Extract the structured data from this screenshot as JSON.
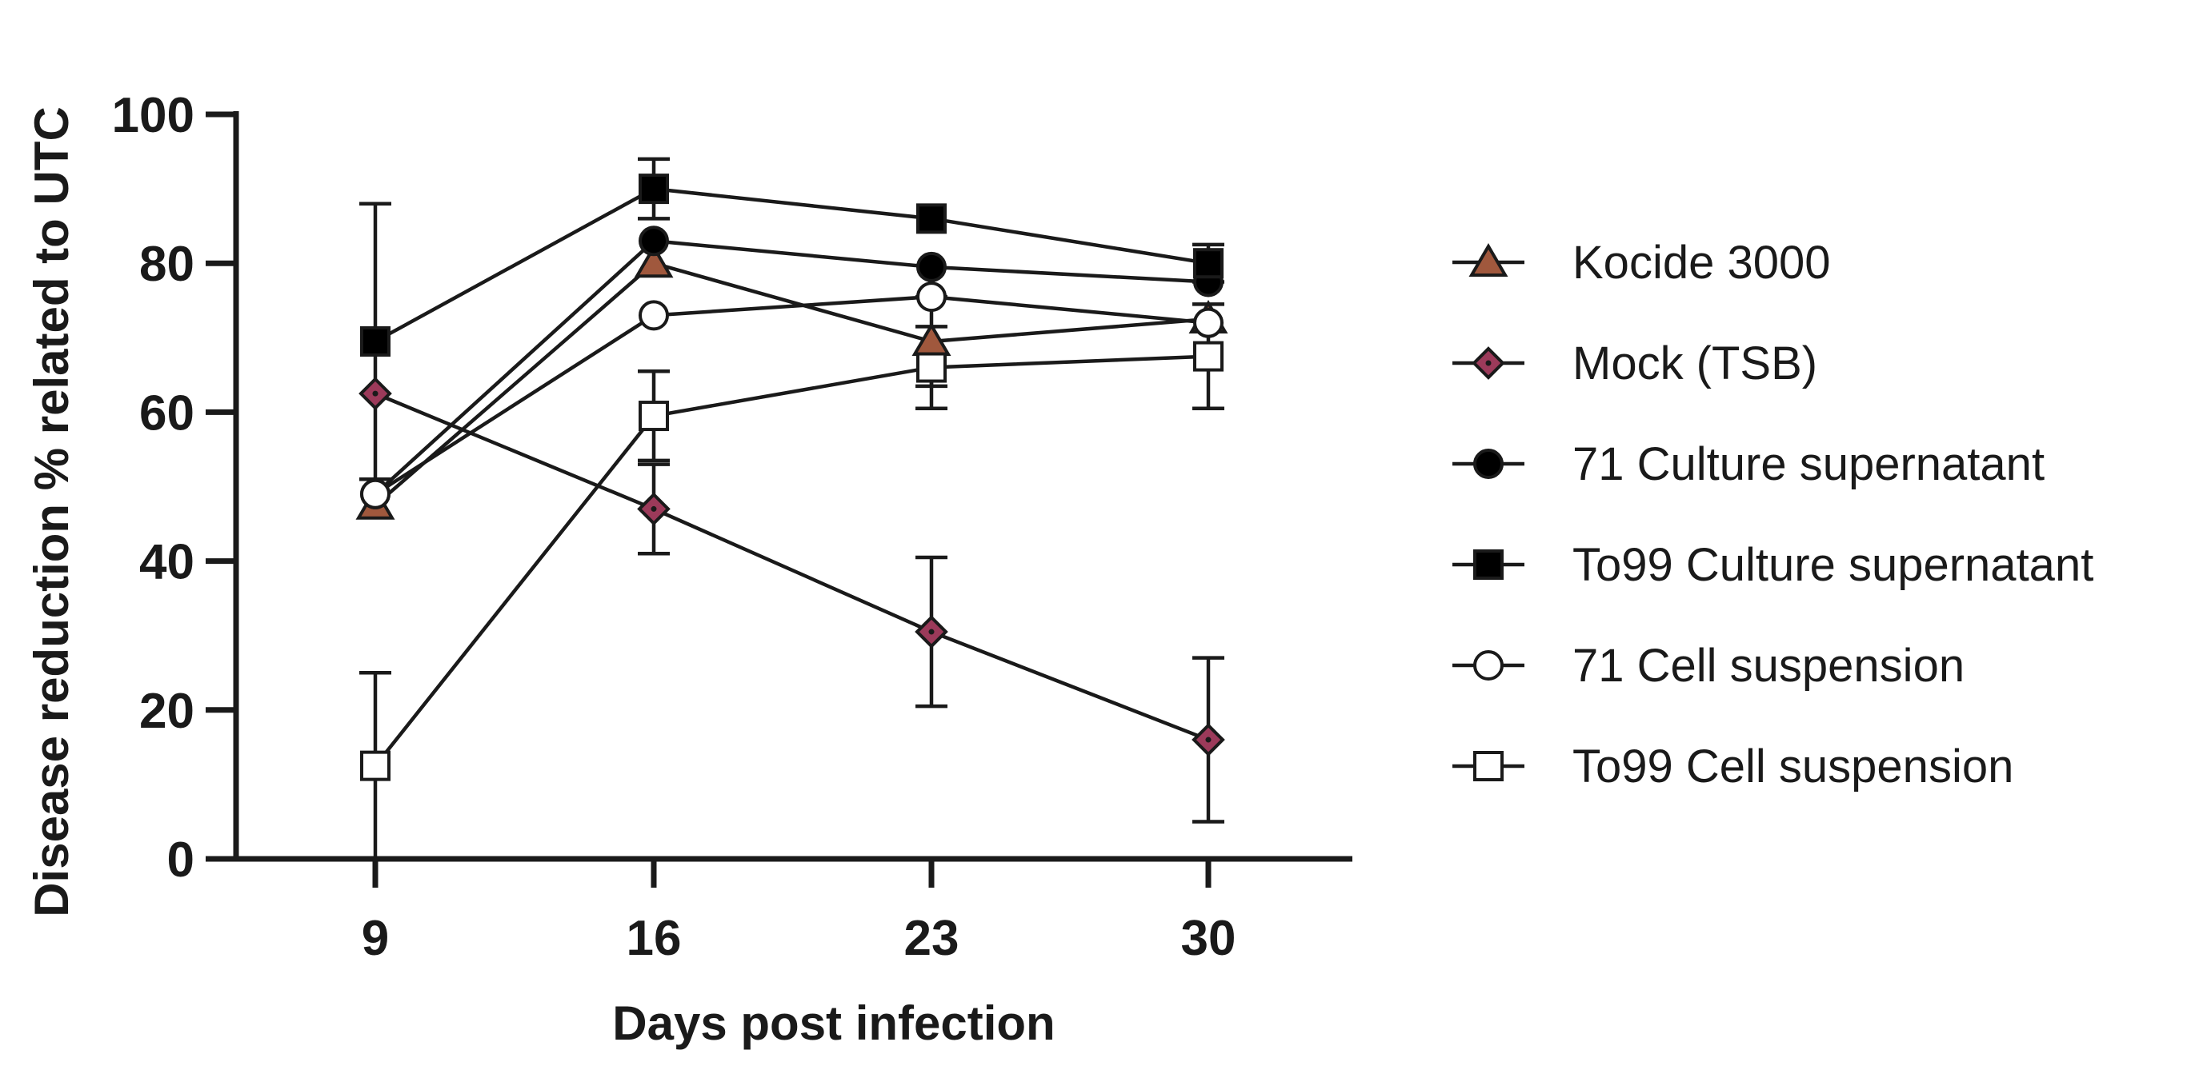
{
  "chart_data": {
    "type": "line",
    "title": "",
    "xlabel": "Days post infection",
    "ylabel": "Disease reduction % related to UTC",
    "x": [
      9,
      16,
      23,
      30
    ],
    "x_tick_labels": [
      "9",
      "16",
      "23",
      "30"
    ],
    "ylim": [
      0,
      100
    ],
    "y_ticks": [
      0,
      20,
      40,
      60,
      80,
      100
    ],
    "y_tick_labels": [
      "0",
      "20",
      "40",
      "60",
      "80",
      "100"
    ],
    "grid": false,
    "legend_position": "right",
    "series": [
      {
        "name": "Kocide 3000",
        "marker": "triangle",
        "fill": "#a0583d",
        "values": [
          47.5,
          80,
          69.5,
          72.5
        ],
        "errors": [
          null,
          null,
          6,
          null
        ]
      },
      {
        "name": "Mock (TSB)",
        "marker": "diamond",
        "fill": "#9c3a5a",
        "values": [
          62.5,
          47,
          30.5,
          16
        ],
        "errors": [
          null,
          6,
          10,
          11
        ]
      },
      {
        "name": "71 Culture supernatant",
        "marker": "circle",
        "fill": "#000000",
        "values": [
          49,
          83,
          79.5,
          77.5
        ],
        "errors": [
          null,
          null,
          null,
          null
        ]
      },
      {
        "name": "To99 Culture supernatant",
        "marker": "square",
        "fill": "#000000",
        "values": [
          69.5,
          90,
          86,
          80
        ],
        "errors": [
          18.5,
          4,
          null,
          2.5
        ]
      },
      {
        "name": "71 Cell suspension",
        "marker": "circle",
        "fill": "#ffffff",
        "values": [
          49,
          73,
          75.5,
          72
        ],
        "errors": [
          null,
          null,
          null,
          null
        ]
      },
      {
        "name": "To99 Cell suspension",
        "marker": "square",
        "fill": "#ffffff",
        "values": [
          12.5,
          59.5,
          66,
          67.5
        ],
        "errors": [
          12.5,
          6,
          5.5,
          7
        ]
      }
    ]
  }
}
